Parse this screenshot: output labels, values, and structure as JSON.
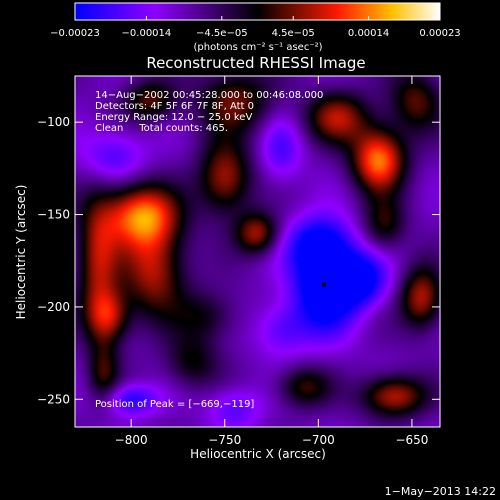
{
  "chart_data": {
    "type": "heatmap",
    "title": "Reconstructed RHESSI Image",
    "xlabel": "Heliocentric X (arcsec)",
    "ylabel": "Heliocentric Y (arcsec)",
    "xlim": [
      -830,
      -635
    ],
    "ylim": [
      -265,
      -75
    ],
    "x_ticks": [
      -800,
      -750,
      -700,
      -650
    ],
    "x_tick_labels": [
      "−800",
      "−750",
      "−700",
      "−650"
    ],
    "y_ticks": [
      -100,
      -150,
      -200,
      -250
    ],
    "y_tick_labels": [
      "−100",
      "−150",
      "−200",
      "−250"
    ],
    "colorbar": {
      "ticks": [
        -0.00023,
        -0.00014,
        -4.5e-05,
        4.5e-05,
        0.00014,
        0.00023
      ],
      "tick_labels": [
        "−0.00023",
        "−0.00014",
        "−4.5e−05",
        "4.5e−05",
        "0.00014",
        "0.00023"
      ],
      "units": "(photons cm⁻² s⁻¹ asec⁻²)",
      "range": [
        -0.00023,
        0.00023
      ],
      "colors": [
        "#0000ff",
        "#8f00ff",
        "#000000",
        "#ff1a00",
        "#ffc000",
        "#ffffff"
      ]
    },
    "info_lines": [
      "14−Aug−2002 00:45:28.000 to 00:46:08.000",
      "Detectors: 4F 5F 6F 7F 8F, Att 0",
      "Energy Range: 12.0 − 25.0 keV",
      "Clean     Total counts: 465."
    ],
    "peak_label": "Position of Peak = [−669,−119]",
    "peak_position": [
      -669,
      -119
    ],
    "sources": [
      {
        "x": -795,
        "y": -150,
        "value": 0.00022,
        "sx": 14,
        "sy": 12
      },
      {
        "x": -788,
        "y": -180,
        "value": 0.00016,
        "sx": 12,
        "sy": 18
      },
      {
        "x": -818,
        "y": -175,
        "value": 0.00015,
        "sx": 8,
        "sy": 25
      },
      {
        "x": -812,
        "y": -205,
        "value": 0.00014,
        "sx": 8,
        "sy": 10
      },
      {
        "x": -790,
        "y": -88,
        "value": 0.00012,
        "sx": 10,
        "sy": 8
      },
      {
        "x": -745,
        "y": -88,
        "value": 0.00013,
        "sx": 14,
        "sy": 12
      },
      {
        "x": -750,
        "y": -130,
        "value": 0.00016,
        "sx": 10,
        "sy": 14
      },
      {
        "x": -733,
        "y": -160,
        "value": 0.00015,
        "sx": 8,
        "sy": 8
      },
      {
        "x": -668,
        "y": -120,
        "value": 0.00023,
        "sx": 10,
        "sy": 12
      },
      {
        "x": -690,
        "y": -97,
        "value": 0.00015,
        "sx": 12,
        "sy": 10
      },
      {
        "x": -648,
        "y": -88,
        "value": 0.00012,
        "sx": 10,
        "sy": 12
      },
      {
        "x": -665,
        "y": -155,
        "value": 0.0001,
        "sx": 8,
        "sy": 10
      },
      {
        "x": -645,
        "y": -195,
        "value": 0.00016,
        "sx": 8,
        "sy": 12
      },
      {
        "x": -660,
        "y": -248,
        "value": 0.00017,
        "sx": 12,
        "sy": 8
      },
      {
        "x": -708,
        "y": -243,
        "value": 0.00011,
        "sx": 10,
        "sy": 8
      },
      {
        "x": -768,
        "y": -230,
        "value": 9e-05,
        "sx": 10,
        "sy": 10
      },
      {
        "x": -815,
        "y": -235,
        "value": 0.0001,
        "sx": 6,
        "sy": 12
      },
      {
        "x": -760,
        "y": -205,
        "value": 8e-05,
        "sx": 12,
        "sy": 10
      },
      {
        "x": -697,
        "y": -188,
        "value": -0.00021,
        "sx": 12,
        "sy": 18
      },
      {
        "x": -678,
        "y": -185,
        "value": -0.00016,
        "sx": 10,
        "sy": 10
      },
      {
        "x": -700,
        "y": -165,
        "value": -0.00012,
        "sx": 12,
        "sy": 10
      },
      {
        "x": -800,
        "y": -250,
        "value": -0.00012,
        "sx": 10,
        "sy": 6
      },
      {
        "x": -810,
        "y": -118,
        "value": -9e-05,
        "sx": 12,
        "sy": 10
      },
      {
        "x": -720,
        "y": -212,
        "value": -8e-05,
        "sx": 10,
        "sy": 10
      },
      {
        "x": -745,
        "y": -255,
        "value": -8e-05,
        "sx": 10,
        "sy": 8
      },
      {
        "x": -720,
        "y": -115,
        "value": -8e-05,
        "sx": 8,
        "sy": 12
      }
    ],
    "grid": false
  },
  "footer": {
    "timestamp": "1−May−2013 14:22"
  }
}
